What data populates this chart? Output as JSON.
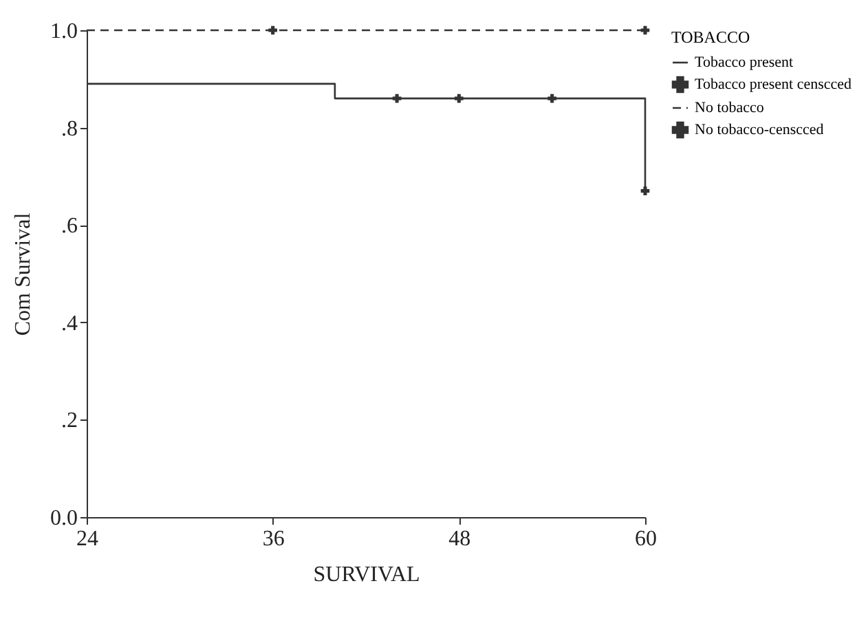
{
  "chart_data": {
    "type": "step",
    "xlabel": "SURVIVAL",
    "ylabel": "Com Survival",
    "legend_title": "TOBACCO",
    "xlim": [
      24,
      60
    ],
    "xticks": [
      24,
      36,
      48,
      60
    ],
    "ylim": [
      0,
      1
    ],
    "yticks": [
      {
        "value": 0,
        "label": "0.0"
      },
      {
        "value": 0.2,
        "label": ".2"
      },
      {
        "value": 0.4,
        "label": ".4"
      },
      {
        "value": 0.6,
        "label": ".6"
      },
      {
        "value": 0.8,
        "label": ".8"
      },
      {
        "value": 1,
        "label": "1.0"
      }
    ],
    "grid": false,
    "legend": "right",
    "series": [
      {
        "name": "Tobacco present",
        "color": "#333333",
        "line_style": "solid",
        "x": [
          24,
          40,
          60,
          60
        ],
        "values": [
          0.89,
          0.86,
          0.86,
          0.67
        ]
      },
      {
        "name": "Tobacco present censcced",
        "type": "scatter",
        "marker": "cross",
        "color": "#333333",
        "x": [
          44,
          48,
          54,
          60
        ],
        "values": [
          0.86,
          0.86,
          0.86,
          0.67
        ]
      },
      {
        "name": "No tobacco",
        "color": "#333333",
        "line_style": "dashed",
        "x": [
          24,
          60
        ],
        "values": [
          1,
          1
        ]
      },
      {
        "name": "No tobacco-censcced",
        "type": "scatter",
        "marker": "cross",
        "color": "#333333",
        "x": [
          36,
          60
        ],
        "values": [
          1,
          1
        ]
      }
    ]
  }
}
